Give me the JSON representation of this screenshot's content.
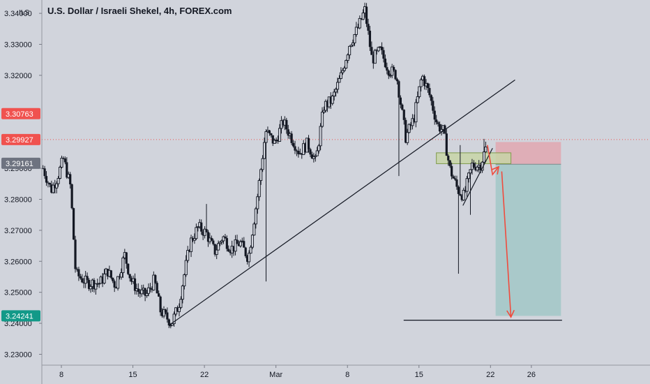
{
  "header": {
    "symbol": "U.S. Dollar / Israeli Shekel",
    "sep1": ", ",
    "interval": "4h",
    "sep2": ", ",
    "exchange": "FOREX.com",
    "currency": "ILS"
  },
  "colors": {
    "background": "#d1d4dc",
    "candle": "#131722",
    "red_label": "#f0524f",
    "gray_label": "#6e7380",
    "green_label": "#129988",
    "stop_zone": "#dfaeb7",
    "target_zone": "#a9c9ca",
    "entry_box": "#c8d5a7",
    "arrow": "#f04b3d"
  },
  "chart_data": {
    "type": "candlestick",
    "ylim": [
      3.2265,
      3.3425
    ],
    "yticks": [
      {
        "v": 3.34,
        "label": "3.34000"
      },
      {
        "v": 3.33,
        "label": "3.33000"
      },
      {
        "v": 3.32,
        "label": "3.32000"
      },
      {
        "v": 3.29,
        "label": "3.29000"
      },
      {
        "v": 3.28,
        "label": "3.28000"
      },
      {
        "v": 3.27,
        "label": "3.27000"
      },
      {
        "v": 3.26,
        "label": "3.26000"
      },
      {
        "v": 3.25,
        "label": "3.25000"
      },
      {
        "v": 3.24,
        "label": "3.24000"
      },
      {
        "v": 3.23,
        "label": "3.23000"
      }
    ],
    "xticks": [
      {
        "day": 8,
        "label": "8"
      },
      {
        "day": 15,
        "label": "15"
      },
      {
        "day": 22,
        "label": "22"
      },
      {
        "day": 29,
        "label": "Mar"
      },
      {
        "day": 36,
        "label": "8"
      },
      {
        "day": 43,
        "label": "15"
      },
      {
        "day": 50,
        "label": "22"
      },
      {
        "day": 54,
        "label": "26"
      }
    ],
    "price_labels": [
      {
        "v": 3.30763,
        "label": "3.30763",
        "color": "#f0524f"
      },
      {
        "v": 3.29927,
        "label": "3.29927",
        "color": "#f0524f",
        "dotted_line": true
      },
      {
        "v": 3.29161,
        "label": "3.29161",
        "color": "#6e7380"
      },
      {
        "v": 3.24241,
        "label": "3.24241",
        "color": "#129988"
      }
    ],
    "price_waypoints": [
      [
        6.2,
        3.29
      ],
      [
        7.0,
        3.283
      ],
      [
        7.6,
        3.287
      ],
      [
        8.2,
        3.293
      ],
      [
        8.9,
        3.284
      ],
      [
        9.4,
        3.256
      ],
      [
        10.5,
        3.253
      ],
      [
        11.8,
        3.253
      ],
      [
        12.5,
        3.257
      ],
      [
        13.3,
        3.252
      ],
      [
        14.2,
        3.262
      ],
      [
        14.8,
        3.254
      ],
      [
        15.6,
        3.25
      ],
      [
        16.3,
        3.249
      ],
      [
        17.1,
        3.254
      ],
      [
        17.7,
        3.244
      ],
      [
        18.8,
        3.24
      ],
      [
        19.5,
        3.246
      ],
      [
        20.6,
        3.266
      ],
      [
        21.4,
        3.271
      ],
      [
        22.2,
        3.269
      ],
      [
        23.0,
        3.263
      ],
      [
        23.8,
        3.268
      ],
      [
        24.6,
        3.264
      ],
      [
        25.5,
        3.266
      ],
      [
        26.3,
        3.261
      ],
      [
        27.2,
        3.281
      ],
      [
        28.0,
        3.302
      ],
      [
        28.9,
        3.298
      ],
      [
        29.7,
        3.305
      ],
      [
        30.5,
        3.3
      ],
      [
        31.3,
        3.295
      ],
      [
        32.1,
        3.298
      ],
      [
        32.9,
        3.292
      ],
      [
        33.7,
        3.31
      ],
      [
        34.5,
        3.312
      ],
      [
        35.4,
        3.32
      ],
      [
        36.2,
        3.33
      ],
      [
        37.0,
        3.335
      ],
      [
        37.7,
        3.341
      ],
      [
        38.4,
        3.325
      ],
      [
        39.2,
        3.328
      ],
      [
        40.0,
        3.322
      ],
      [
        40.8,
        3.32
      ],
      [
        41.7,
        3.3
      ],
      [
        42.5,
        3.306
      ],
      [
        43.3,
        3.32
      ],
      [
        44.0,
        3.314
      ],
      [
        44.8,
        3.304
      ],
      [
        45.4,
        3.302
      ],
      [
        46.0,
        3.29
      ],
      [
        46.8,
        3.283
      ],
      [
        47.4,
        3.281
      ],
      [
        48.2,
        3.291
      ],
      [
        49.0,
        3.291
      ],
      [
        49.6,
        3.297
      ]
    ],
    "wick_spikes": [
      {
        "day": 9.0,
        "low": 3.2805
      },
      {
        "day": 22.2,
        "high": 3.2785
      },
      {
        "day": 28.0,
        "low": 3.2535
      },
      {
        "day": 41.0,
        "low": 3.2875
      },
      {
        "day": 46.8,
        "low": 3.256
      },
      {
        "day": 47.0,
        "high": 3.2975
      },
      {
        "day": 48.0,
        "low": 3.275
      },
      {
        "day": 49.4,
        "high": 3.2995
      }
    ],
    "drawings": {
      "trendlines": [
        {
          "from": [
            18.6,
            3.2395
          ],
          "to": [
            52.4,
            3.3185
          ]
        },
        {
          "from": [
            47.3,
            3.278
          ],
          "to": [
            50.2,
            3.2965
          ]
        },
        {
          "from": [
            41.5,
            3.241
          ],
          "to": [
            57.0,
            3.241
          ]
        }
      ],
      "entry_box": {
        "x1": 44.7,
        "x2": 52.0,
        "y1": 3.2915,
        "y2": 3.295
      },
      "position": {
        "x1": 50.5,
        "x2": 56.9,
        "entry": 3.2913,
        "stop": 3.2985,
        "target": 3.2424
      },
      "arrows": [
        {
          "path": [
            [
              49.7,
              3.2975
            ],
            [
              50.2,
              3.288
            ],
            [
              50.8,
              3.2905
            ]
          ]
        },
        {
          "path": [
            [
              51.1,
              3.289
            ],
            [
              52.0,
              3.242
            ]
          ]
        }
      ]
    }
  }
}
